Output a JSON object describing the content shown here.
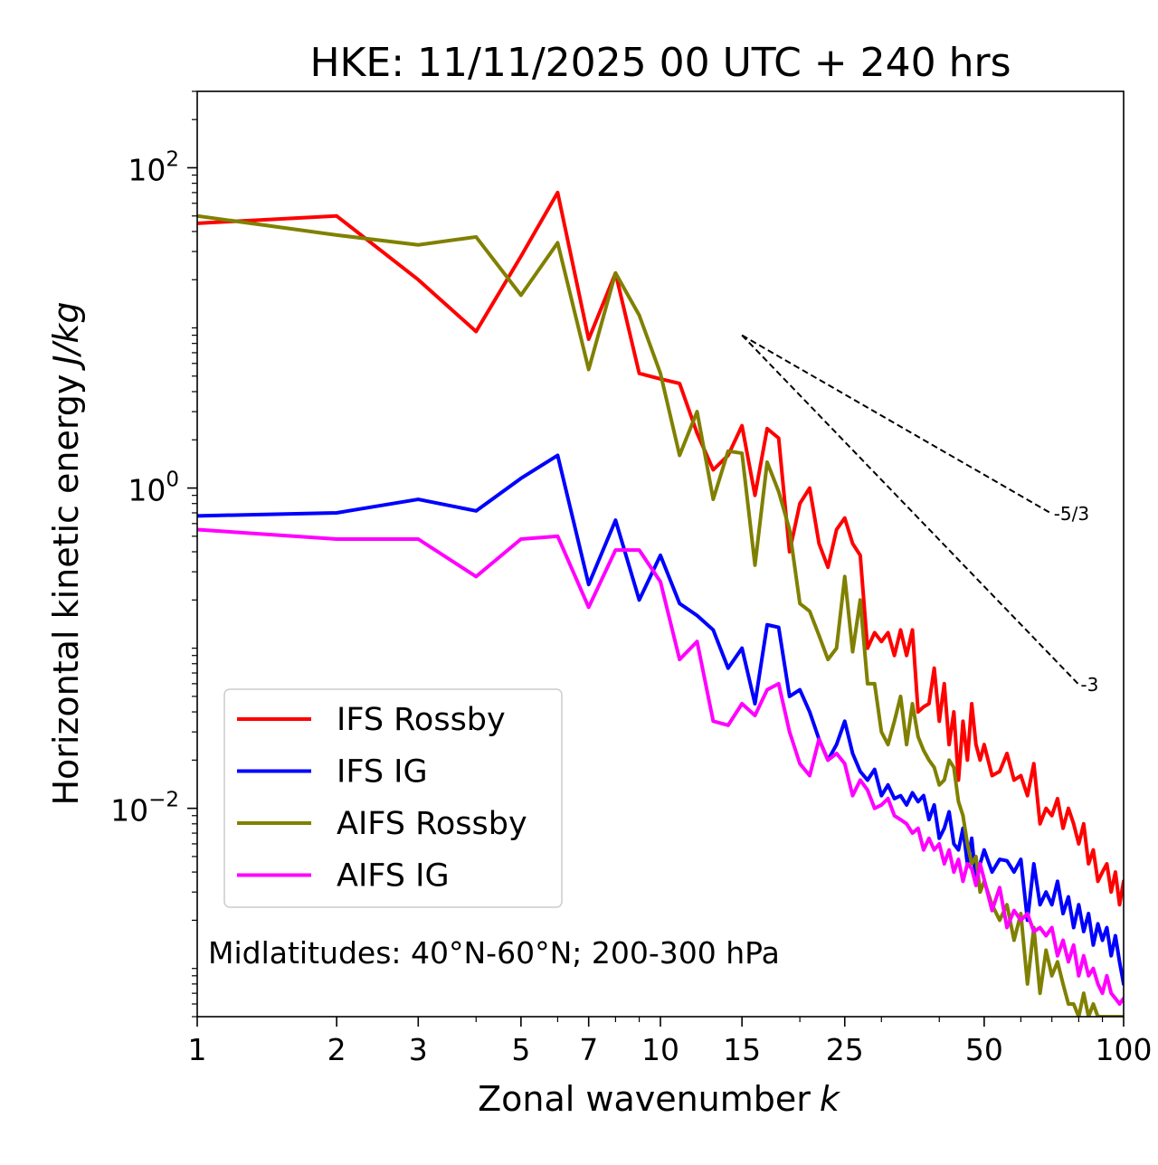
{
  "chart_data": {
    "type": "line",
    "title": "HKE: 11/11/2025 00 UTC + 240 hrs",
    "xlabel": "Zonal wavenumber",
    "xlabel_var": "k",
    "ylabel": "Horizontal kinetic energy",
    "ylabel_unit": "J/kg",
    "xscale": "log",
    "yscale": "log",
    "xlim": [
      1,
      100
    ],
    "ylim": [
      0.0005,
      300
    ],
    "x_ticks": [
      1,
      2,
      3,
      5,
      7,
      10,
      15,
      25,
      50,
      100
    ],
    "x_tick_labels": [
      "1",
      "2",
      "3",
      "5",
      "7",
      "10",
      "15",
      "25",
      "50",
      "100"
    ],
    "y_ticks": [
      100,
      1,
      0.01
    ],
    "y_tick_labels": [
      {
        "base": "10",
        "exp": "2"
      },
      {
        "base": "10",
        "exp": "0"
      },
      {
        "base": "10",
        "exp": "−2"
      }
    ],
    "annotation": "Midlatitudes: 40°N-60°N; 200-300 hPa",
    "legend_position": "lower-left",
    "series": [
      {
        "name": "IFS Rossby",
        "color": "#ff0000",
        "x": [
          1,
          2,
          3,
          4,
          5,
          6,
          7,
          8,
          9,
          10,
          11,
          12,
          13,
          14,
          15,
          16,
          17,
          18,
          19,
          20,
          21,
          22,
          23,
          24,
          25,
          26,
          27,
          28,
          29,
          30,
          31,
          32,
          33,
          34,
          35,
          36,
          37,
          38,
          39,
          40,
          41,
          42,
          43,
          44,
          45,
          46,
          47,
          48,
          49,
          50,
          52,
          54,
          56,
          58,
          60,
          62,
          64,
          66,
          68,
          70,
          72,
          74,
          76,
          78,
          80,
          82,
          84,
          86,
          88,
          90,
          92,
          94,
          96,
          98,
          100
        ],
        "values": [
          45,
          50,
          20,
          9.5,
          28,
          70,
          8.5,
          22,
          5.2,
          4.8,
          4.5,
          2.2,
          1.3,
          1.6,
          2.45,
          0.9,
          2.35,
          2.05,
          0.4,
          0.8,
          1.0,
          0.45,
          0.32,
          0.55,
          0.65,
          0.45,
          0.38,
          0.1,
          0.125,
          0.11,
          0.125,
          0.09,
          0.13,
          0.09,
          0.13,
          0.04,
          0.043,
          0.045,
          0.075,
          0.035,
          0.06,
          0.025,
          0.04,
          0.015,
          0.035,
          0.02,
          0.045,
          0.025,
          0.02,
          0.025,
          0.016,
          0.017,
          0.022,
          0.015,
          0.016,
          0.012,
          0.019,
          0.008,
          0.01,
          0.009,
          0.0115,
          0.0075,
          0.01,
          0.008,
          0.006,
          0.008,
          0.0045,
          0.0055,
          0.0035,
          0.004,
          0.0045,
          0.003,
          0.004,
          0.0025,
          0.0035
        ]
      },
      {
        "name": "IFS IG",
        "color": "#0000ff",
        "x": [
          1,
          2,
          3,
          4,
          5,
          6,
          7,
          8,
          9,
          10,
          11,
          12,
          13,
          14,
          15,
          16,
          17,
          18,
          19,
          20,
          21,
          22,
          23,
          24,
          25,
          26,
          27,
          28,
          29,
          30,
          31,
          32,
          33,
          34,
          35,
          36,
          37,
          38,
          39,
          40,
          41,
          42,
          43,
          44,
          45,
          46,
          47,
          48,
          49,
          50,
          52,
          54,
          56,
          58,
          60,
          62,
          64,
          66,
          68,
          70,
          72,
          74,
          76,
          78,
          80,
          82,
          84,
          86,
          88,
          90,
          92,
          94,
          96,
          98,
          100
        ],
        "values": [
          0.67,
          0.7,
          0.85,
          0.72,
          1.15,
          1.6,
          0.25,
          0.63,
          0.2,
          0.38,
          0.19,
          0.16,
          0.13,
          0.075,
          0.1,
          0.045,
          0.14,
          0.135,
          0.05,
          0.055,
          0.04,
          0.027,
          0.02,
          0.025,
          0.035,
          0.022,
          0.017,
          0.015,
          0.0175,
          0.012,
          0.014,
          0.0115,
          0.012,
          0.0105,
          0.0125,
          0.011,
          0.012,
          0.0085,
          0.0105,
          0.0065,
          0.0075,
          0.0095,
          0.006,
          0.0055,
          0.0075,
          0.0045,
          0.0065,
          0.0035,
          0.0045,
          0.0055,
          0.004,
          0.0048,
          0.0047,
          0.004,
          0.0048,
          0.002,
          0.0045,
          0.0025,
          0.003,
          0.0025,
          0.0035,
          0.0022,
          0.0028,
          0.0018,
          0.0025,
          0.0017,
          0.0022,
          0.0014,
          0.0019,
          0.0015,
          0.0018,
          0.0012,
          0.0016,
          0.0011,
          0.0008
        ]
      },
      {
        "name": "AIFS Rossby",
        "color": "#808000",
        "x": [
          1,
          2,
          3,
          4,
          5,
          6,
          7,
          8,
          9,
          10,
          11,
          12,
          13,
          14,
          15,
          16,
          17,
          18,
          19,
          20,
          21,
          22,
          23,
          24,
          25,
          26,
          27,
          28,
          29,
          30,
          31,
          32,
          33,
          34,
          35,
          36,
          37,
          38,
          39,
          40,
          41,
          42,
          43,
          44,
          45,
          46,
          47,
          48,
          49,
          50,
          52,
          54,
          56,
          58,
          60,
          62,
          64,
          66,
          68,
          70,
          72,
          74,
          76,
          78,
          80,
          82,
          84,
          86,
          88,
          90,
          92,
          94,
          96,
          98,
          100
        ],
        "values": [
          50,
          38,
          33,
          37,
          16,
          34,
          5.5,
          22,
          12,
          5.2,
          1.6,
          3.0,
          0.85,
          1.7,
          1.65,
          0.33,
          1.45,
          0.95,
          0.55,
          0.19,
          0.17,
          0.12,
          0.085,
          0.1,
          0.28,
          0.095,
          0.2,
          0.06,
          0.06,
          0.03,
          0.025,
          0.035,
          0.05,
          0.025,
          0.045,
          0.028,
          0.023,
          0.02,
          0.018,
          0.014,
          0.015,
          0.02,
          0.018,
          0.011,
          0.009,
          0.006,
          0.0045,
          0.005,
          0.003,
          0.0035,
          0.0025,
          0.002,
          0.0025,
          0.0015,
          0.0022,
          0.0008,
          0.0018,
          0.0007,
          0.0013,
          0.0009,
          0.0011,
          0.0008,
          0.0006,
          0.0006,
          0.0005,
          0.0007,
          0.0005,
          0.0006,
          0.0005,
          0.0005,
          0.0005,
          0.0005,
          0.0005,
          0.0005,
          0.0005
        ]
      },
      {
        "name": "AIFS IG",
        "color": "#ff00ff",
        "x": [
          1,
          2,
          3,
          4,
          5,
          6,
          7,
          8,
          9,
          10,
          11,
          12,
          13,
          14,
          15,
          16,
          17,
          18,
          19,
          20,
          21,
          22,
          23,
          24,
          25,
          26,
          27,
          28,
          29,
          30,
          31,
          32,
          33,
          34,
          35,
          36,
          37,
          38,
          39,
          40,
          41,
          42,
          43,
          44,
          45,
          46,
          47,
          48,
          49,
          50,
          52,
          54,
          56,
          58,
          60,
          62,
          64,
          66,
          68,
          70,
          72,
          74,
          76,
          78,
          80,
          82,
          84,
          86,
          88,
          90,
          92,
          94,
          96,
          98,
          100
        ],
        "values": [
          0.55,
          0.48,
          0.48,
          0.28,
          0.48,
          0.5,
          0.18,
          0.41,
          0.41,
          0.26,
          0.085,
          0.11,
          0.035,
          0.033,
          0.045,
          0.038,
          0.055,
          0.06,
          0.03,
          0.019,
          0.016,
          0.027,
          0.02,
          0.022,
          0.019,
          0.012,
          0.015,
          0.013,
          0.01,
          0.0105,
          0.0115,
          0.009,
          0.0085,
          0.008,
          0.007,
          0.0075,
          0.0055,
          0.0065,
          0.0055,
          0.006,
          0.0045,
          0.0055,
          0.004,
          0.0048,
          0.0035,
          0.0045,
          0.0042,
          0.0033,
          0.0045,
          0.0036,
          0.0023,
          0.0032,
          0.0018,
          0.0023,
          0.002,
          0.0022,
          0.0017,
          0.0018,
          0.0016,
          0.0018,
          0.0012,
          0.0015,
          0.0011,
          0.0014,
          0.0009,
          0.0012,
          0.0009,
          0.001,
          0.0008,
          0.0007,
          0.0009,
          0.0007,
          0.00065,
          0.0006,
          0.00065
        ]
      }
    ],
    "reference_slopes": [
      {
        "label": "-5/3",
        "x_start": 15,
        "x_end": 70,
        "y_start": 9.0
      },
      {
        "label": "-3",
        "x_start": 15,
        "x_end": 80,
        "y_start": 9.0
      }
    ]
  }
}
